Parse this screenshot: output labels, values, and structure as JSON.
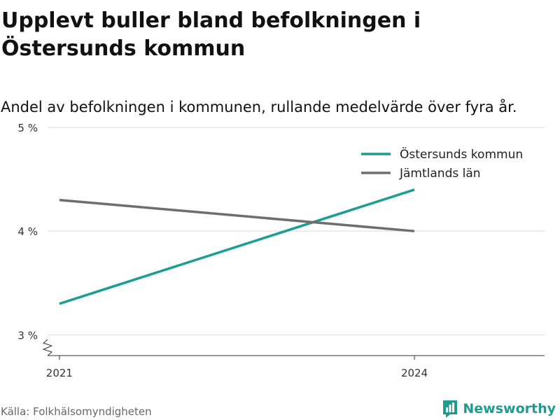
{
  "chart_data": {
    "type": "line",
    "title": "Upplevt buller bland befolkningen i Östersunds kommun",
    "subtitle": "Andel av befolkningen i kommunen, rullande medelvärde över fyra år.",
    "x": [
      2021,
      2024
    ],
    "x_tick_labels": [
      "2021",
      "2024"
    ],
    "y_tick_labels": [
      "3 %",
      "4 %",
      "5 %"
    ],
    "y_ticks": [
      3,
      4,
      5
    ],
    "ylim": [
      2.8,
      5
    ],
    "xlim": [
      2020.9,
      2025.1
    ],
    "grid": true,
    "legend_position": "top-right",
    "series": [
      {
        "name": "Östersunds kommun",
        "values": [
          3.3,
          4.4
        ],
        "color": "#1a9e93"
      },
      {
        "name": "Jämtlands län",
        "values": [
          4.3,
          4.0
        ],
        "color": "#6e6d73"
      }
    ]
  },
  "source": "Källa: Folkhälsomyndigheten",
  "brand": {
    "name": "Newsworthy",
    "icon": "newsworthy-logo-icon",
    "color": "#1c9c8f"
  }
}
